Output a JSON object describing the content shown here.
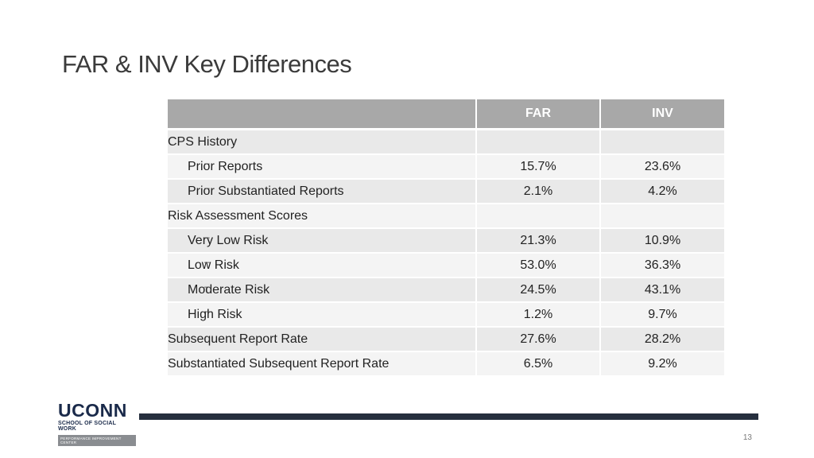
{
  "slide": {
    "title": "FAR & INV Key Differences",
    "page_number": "13"
  },
  "table": {
    "headers": [
      "",
      "FAR",
      "INV"
    ],
    "rows": [
      {
        "label": "CPS History",
        "indent": false,
        "far": "",
        "inv": ""
      },
      {
        "label": "Prior Reports",
        "indent": true,
        "far": "15.7%",
        "inv": "23.6%"
      },
      {
        "label": "Prior Substantiated Reports",
        "indent": true,
        "far": "2.1%",
        "inv": "4.2%"
      },
      {
        "label": "Risk Assessment Scores",
        "indent": false,
        "far": "",
        "inv": ""
      },
      {
        "label": "Very Low Risk",
        "indent": true,
        "far": "21.3%",
        "inv": "10.9%"
      },
      {
        "label": "Low Risk",
        "indent": true,
        "far": "53.0%",
        "inv": "36.3%"
      },
      {
        "label": "Moderate Risk",
        "indent": true,
        "far": "24.5%",
        "inv": "43.1%"
      },
      {
        "label": "High Risk",
        "indent": true,
        "far": "1.2%",
        "inv": "9.7%"
      },
      {
        "label": "Subsequent Report Rate",
        "indent": false,
        "far": "27.6%",
        "inv": "28.2%"
      },
      {
        "label": "Substantiated Subsequent Report Rate",
        "indent": false,
        "far": "6.5%",
        "inv": "9.2%"
      }
    ],
    "bullet_glyph": "–"
  },
  "logo": {
    "wordmark": "UCONN",
    "subtitle": "SCHOOL OF SOCIAL WORK",
    "bar_text": "PERFORMANCE IMPROVEMENT CENTER"
  },
  "colors": {
    "header_bg": "#a8a8a8",
    "row_shade": "#e9e9e9",
    "row_light": "#f4f4f4",
    "footer_line": "#262f3e",
    "logo_navy": "#1a2a4a"
  }
}
